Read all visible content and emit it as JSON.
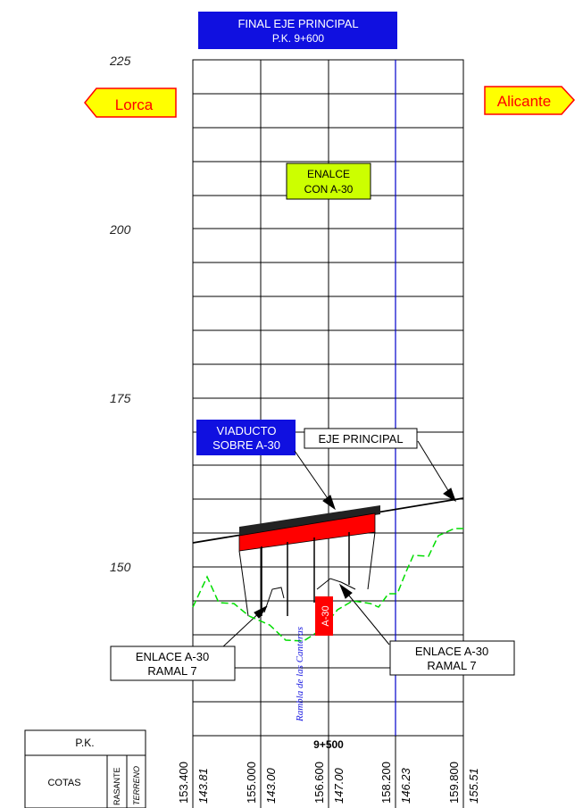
{
  "title_box": {
    "line1": "FINAL EJE PRINCIPAL",
    "line2": "P.K. 9+600",
    "fill": "#1010e0"
  },
  "elevations": [
    "225",
    "200",
    "175",
    "150"
  ],
  "directions": {
    "left": "Lorca",
    "right": "Alicante",
    "fill": "#ffff00",
    "stroke": "#ff0000"
  },
  "enlace_box": {
    "line1": "ENALCE",
    "line2": "CON A-30",
    "fill": "#ccff00"
  },
  "viaducto_box": {
    "line1": "VIADUCTO",
    "line2": "SOBRE A-30",
    "fill": "#1010e0"
  },
  "eje_label": "EJE PRINCIPAL",
  "enlace_left": {
    "line1": "ENLACE A-30",
    "line2": "RAMAL 7"
  },
  "enlace_right": {
    "line1": "ENLACE A-30",
    "line2": "RAMAL 7"
  },
  "a30_tag": "A-30",
  "rambla_label": "Rambla de las Canteras",
  "table": {
    "pk_header": "P.K.",
    "cotas_header": "COTAS",
    "rasante_header": "RASANTE",
    "terreno_header": "TERRENO",
    "station_label": "9+500",
    "rasante_values": [
      "153.400",
      "155.000",
      "156.600",
      "158.200",
      "159.800"
    ],
    "terreno_values": [
      "143.81",
      "143.00",
      "147.00",
      "146.23",
      "155.51"
    ]
  },
  "colors": {
    "grid": "#000000",
    "terrain": "#00dd00",
    "axis_line": "#0000cc",
    "deck": "#ff0000"
  }
}
